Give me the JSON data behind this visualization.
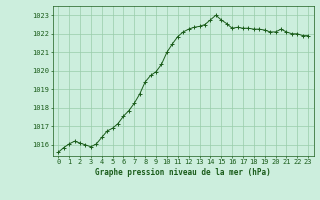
{
  "title": "Graphe pression niveau de la mer (hPa)",
  "background_color": "#cceedd",
  "plot_bg_color": "#cceedd",
  "line_color": "#1a5c1a",
  "marker_color": "#1a5c1a",
  "grid_color": "#99ccaa",
  "ylim": [
    1015.4,
    1023.5
  ],
  "xlim": [
    -0.5,
    23.5
  ],
  "yticks": [
    1016,
    1017,
    1018,
    1019,
    1020,
    1021,
    1022,
    1023
  ],
  "xticks": [
    0,
    1,
    2,
    3,
    4,
    5,
    6,
    7,
    8,
    9,
    10,
    11,
    12,
    13,
    14,
    15,
    16,
    17,
    18,
    19,
    20,
    21,
    22,
    23
  ],
  "x": [
    0,
    0.5,
    1,
    1.5,
    2,
    2.5,
    3,
    3.5,
    4,
    4.5,
    5,
    5.5,
    6,
    6.5,
    7,
    7.5,
    8,
    8.5,
    9,
    9.5,
    10,
    10.5,
    11,
    11.5,
    12,
    12.5,
    13,
    13.5,
    14,
    14.5,
    15,
    15.5,
    16,
    16.5,
    17,
    17.5,
    18,
    18.5,
    19,
    19.5,
    20,
    20.5,
    21,
    21.5,
    22,
    22.5,
    23
  ],
  "y": [
    1015.6,
    1015.85,
    1016.05,
    1016.2,
    1016.1,
    1016.0,
    1015.9,
    1016.05,
    1016.4,
    1016.75,
    1016.9,
    1017.15,
    1017.55,
    1017.85,
    1018.25,
    1018.75,
    1019.4,
    1019.75,
    1019.95,
    1020.35,
    1021.0,
    1021.45,
    1021.85,
    1022.1,
    1022.25,
    1022.35,
    1022.4,
    1022.5,
    1022.75,
    1023.0,
    1022.75,
    1022.55,
    1022.3,
    1022.35,
    1022.3,
    1022.3,
    1022.25,
    1022.25,
    1022.2,
    1022.1,
    1022.1,
    1022.25,
    1022.1,
    1022.0,
    1022.0,
    1021.9,
    1021.9
  ],
  "title_fontsize": 5.5,
  "tick_fontsize": 5.0,
  "figsize": [
    3.2,
    2.0
  ],
  "dpi": 100
}
